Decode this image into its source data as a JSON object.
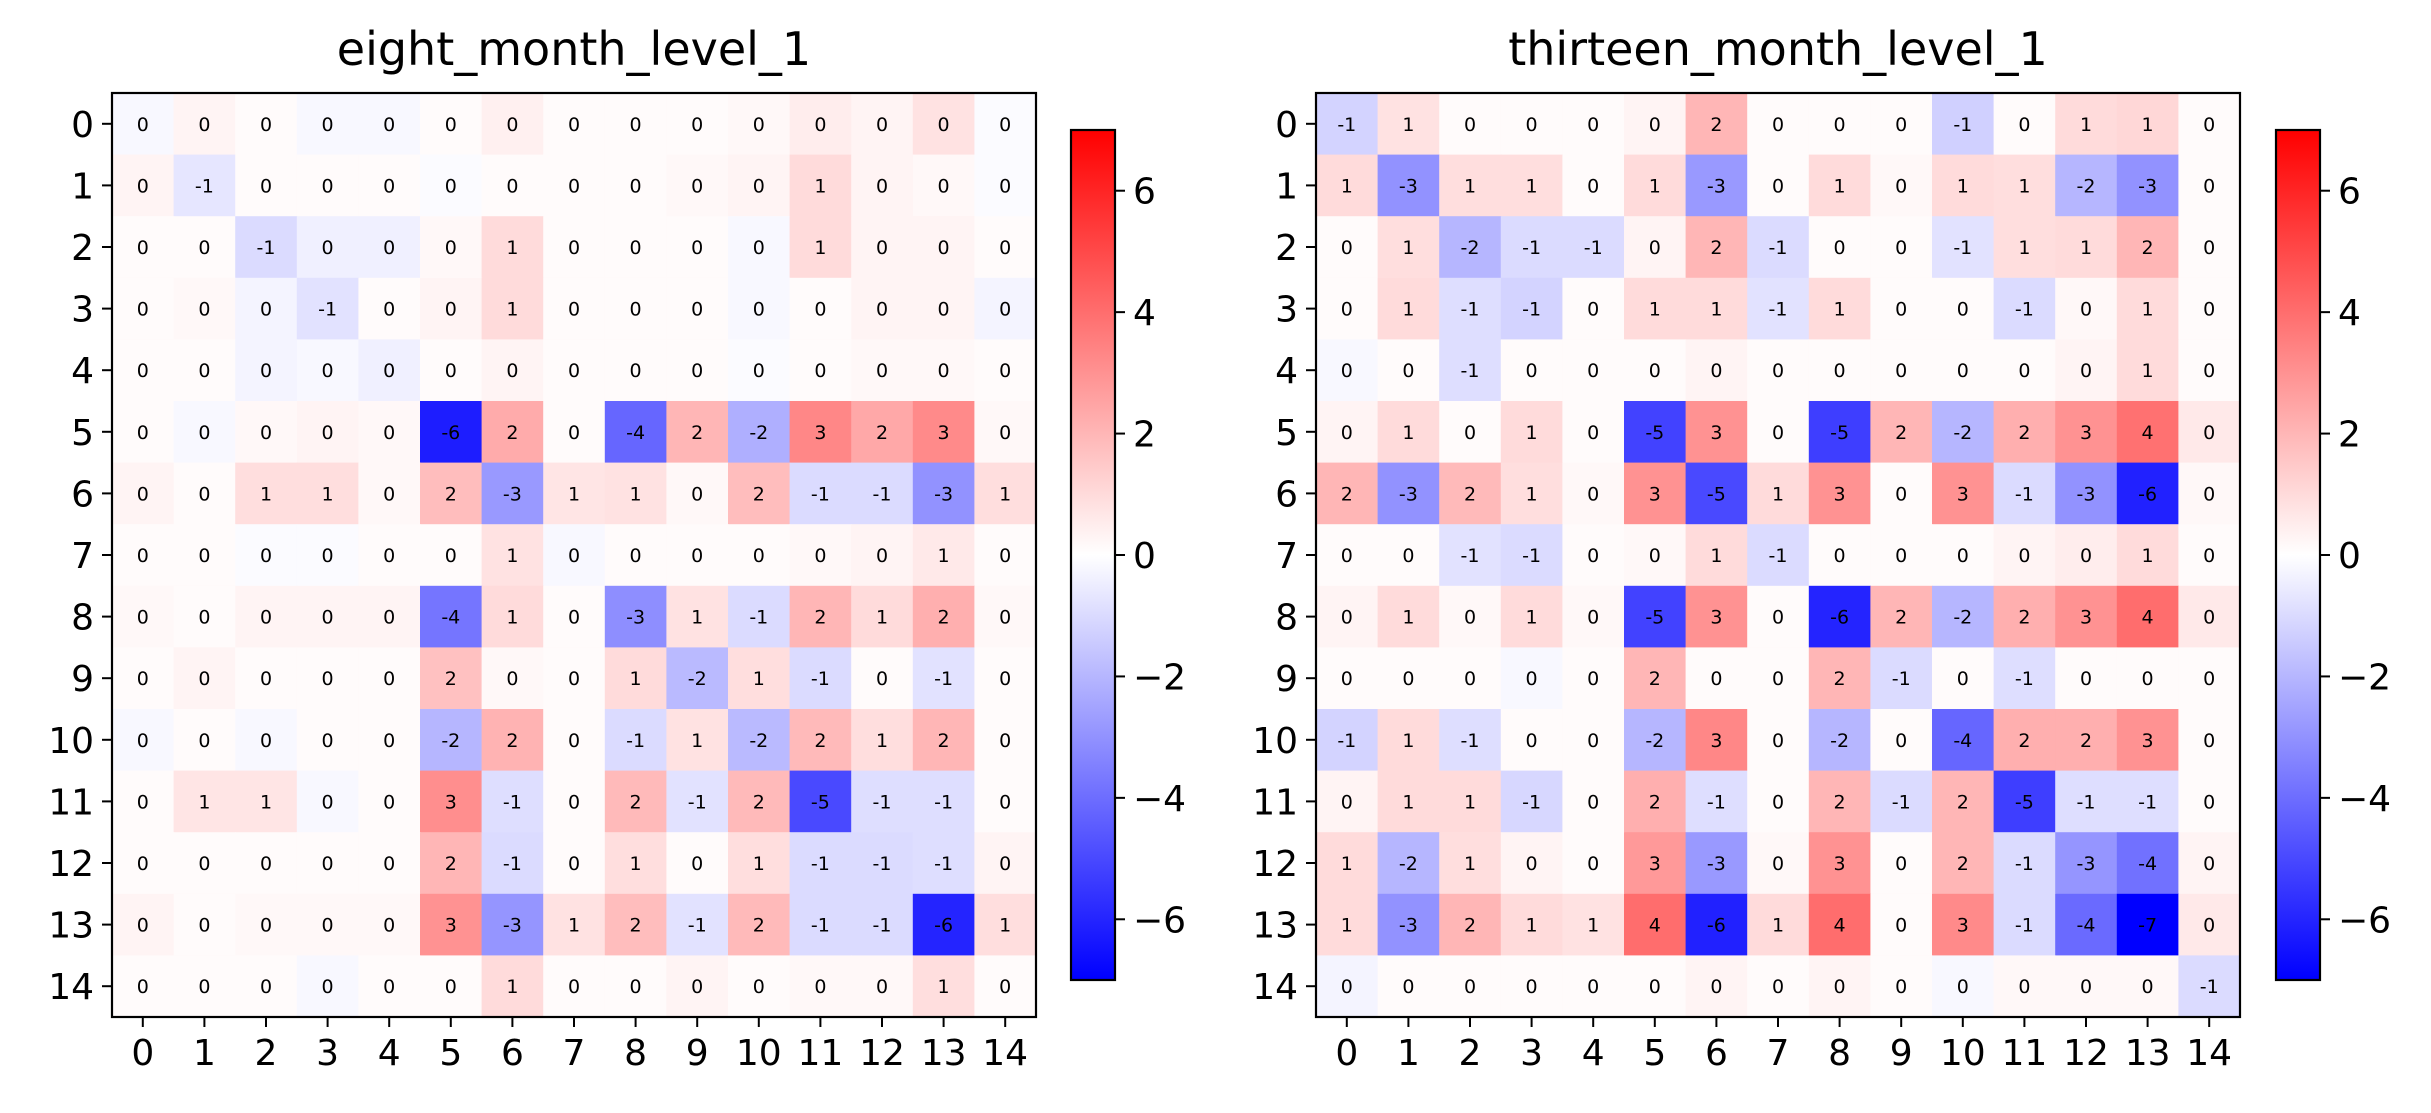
{
  "chart_data": [
    {
      "type": "heatmap",
      "title": "eight_month_level_1",
      "x_ticks": [
        "0",
        "1",
        "2",
        "3",
        "4",
        "5",
        "6",
        "7",
        "8",
        "9",
        "10",
        "11",
        "12",
        "13",
        "14"
      ],
      "y_ticks": [
        "0",
        "1",
        "2",
        "3",
        "4",
        "5",
        "6",
        "7",
        "8",
        "9",
        "10",
        "11",
        "12",
        "13",
        "14"
      ],
      "colormap": "bwr",
      "vmin": -7,
      "vmax": 7,
      "colorbar_ticks": [
        "6",
        "4",
        "2",
        "0",
        "−2",
        "−4",
        "−6"
      ],
      "colorbar_tick_values": [
        6,
        4,
        2,
        0,
        -2,
        -4,
        -6
      ],
      "values": [
        [
          0,
          0,
          0,
          0,
          0,
          0,
          0,
          0,
          0,
          0,
          0,
          0,
          0,
          0,
          0
        ],
        [
          0,
          -1,
          0,
          0,
          0,
          0,
          0,
          0,
          0,
          0,
          0,
          1,
          0,
          0,
          0
        ],
        [
          0,
          0,
          -1,
          0,
          0,
          0,
          1,
          0,
          0,
          0,
          0,
          1,
          0,
          0,
          0
        ],
        [
          0,
          0,
          0,
          -1,
          0,
          0,
          1,
          0,
          0,
          0,
          0,
          0,
          0,
          0,
          0
        ],
        [
          0,
          0,
          0,
          0,
          0,
          0,
          0,
          0,
          0,
          0,
          0,
          0,
          0,
          0,
          0
        ],
        [
          0,
          0,
          0,
          0,
          0,
          -6,
          2,
          0,
          -4,
          2,
          -2,
          3,
          2,
          3,
          0
        ],
        [
          0,
          0,
          1,
          1,
          0,
          2,
          -3,
          1,
          1,
          0,
          2,
          -1,
          -1,
          -3,
          1
        ],
        [
          0,
          0,
          0,
          0,
          0,
          0,
          1,
          0,
          0,
          0,
          0,
          0,
          0,
          1,
          0
        ],
        [
          0,
          0,
          0,
          0,
          0,
          -4,
          1,
          0,
          -3,
          1,
          -1,
          2,
          1,
          2,
          0
        ],
        [
          0,
          0,
          0,
          0,
          0,
          2,
          0,
          0,
          1,
          -2,
          1,
          -1,
          0,
          -1,
          0
        ],
        [
          0,
          0,
          0,
          0,
          0,
          -2,
          2,
          0,
          -1,
          1,
          -2,
          2,
          1,
          2,
          0
        ],
        [
          0,
          1,
          1,
          0,
          0,
          3,
          -1,
          0,
          2,
          -1,
          2,
          -5,
          -1,
          -1,
          0
        ],
        [
          0,
          0,
          0,
          0,
          0,
          2,
          -1,
          0,
          1,
          0,
          1,
          -1,
          -1,
          -1,
          0
        ],
        [
          0,
          0,
          0,
          0,
          0,
          3,
          -3,
          1,
          2,
          -1,
          2,
          -1,
          -1,
          -6,
          1
        ],
        [
          0,
          0,
          0,
          0,
          0,
          0,
          1,
          0,
          0,
          0,
          0,
          0,
          0,
          1,
          0
        ]
      ],
      "colors": [
        [
          -0.2,
          0.3,
          0.1,
          -0.2,
          -0.2,
          0.1,
          0.4,
          0.1,
          0.1,
          0.1,
          0.2,
          0.5,
          0.3,
          0.8,
          -0.1
        ],
        [
          0.3,
          -0.7,
          0.1,
          0.1,
          0.1,
          -0.1,
          0.1,
          0.1,
          0.1,
          0.2,
          0.3,
          1.0,
          0.3,
          0.2,
          -0.1
        ],
        [
          0.1,
          0.1,
          -1.0,
          -0.4,
          -0.4,
          0.2,
          1.0,
          0.1,
          0.1,
          0.1,
          -0.2,
          1.0,
          0.3,
          0.3,
          0.1
        ],
        [
          0.1,
          0.2,
          -0.3,
          -0.8,
          0.1,
          0.3,
          1.0,
          0.1,
          0.1,
          0.1,
          -0.2,
          0.1,
          0.3,
          0.3,
          -0.3
        ],
        [
          0.1,
          0.1,
          -0.3,
          -0.2,
          -0.4,
          0.1,
          0.3,
          0.1,
          0.1,
          0.1,
          -0.1,
          0.1,
          0.2,
          0.2,
          0.1
        ],
        [
          0.1,
          -0.2,
          0.2,
          0.3,
          0.2,
          -6.2,
          2.3,
          0.1,
          -4.2,
          2.0,
          -2.2,
          3.3,
          2.4,
          3.2,
          0.2
        ],
        [
          0.3,
          0.1,
          0.9,
          0.9,
          0.2,
          1.8,
          -2.8,
          0.7,
          0.8,
          0.2,
          1.8,
          -1.0,
          -1.0,
          -3.0,
          0.9
        ],
        [
          0.1,
          0.1,
          -0.1,
          -0.1,
          0.1,
          0.1,
          0.8,
          -0.2,
          0.1,
          0.1,
          0.1,
          0.2,
          0.3,
          0.6,
          0.1
        ],
        [
          0.2,
          0.1,
          0.3,
          0.3,
          0.3,
          -3.8,
          1.0,
          0.1,
          -3.1,
          0.8,
          -1.0,
          2.0,
          1.0,
          2.2,
          0.2
        ],
        [
          0.1,
          0.3,
          0.1,
          0.1,
          0.1,
          1.7,
          0.2,
          0.1,
          1.0,
          -1.9,
          0.9,
          -1.0,
          0.1,
          -0.8,
          0.1
        ],
        [
          -0.2,
          0.1,
          -0.2,
          0.1,
          0.1,
          -2.0,
          2.1,
          0.1,
          -1.0,
          0.8,
          -1.9,
          1.9,
          0.9,
          2.0,
          0.1
        ],
        [
          0.1,
          0.7,
          0.7,
          -0.2,
          0.1,
          3.1,
          -0.9,
          0.1,
          1.9,
          -0.8,
          1.9,
          -5.0,
          -0.9,
          -0.9,
          0.1
        ],
        [
          0.1,
          0.1,
          0.1,
          0.1,
          0.1,
          2.0,
          -1.0,
          0.1,
          0.9,
          0.1,
          0.9,
          -1.0,
          -1.0,
          -0.9,
          0.3
        ],
        [
          0.3,
          0.1,
          0.2,
          0.2,
          0.2,
          3.0,
          -2.9,
          0.8,
          1.8,
          -0.8,
          1.9,
          -1.0,
          -1.0,
          -6.0,
          0.9
        ],
        [
          0.1,
          0.1,
          0.1,
          -0.2,
          0.1,
          0.1,
          1.0,
          0.1,
          0.1,
          0.3,
          0.1,
          0.2,
          0.2,
          0.9,
          0.1
        ]
      ]
    },
    {
      "type": "heatmap",
      "title": "thirteen_month_level_1",
      "x_ticks": [
        "0",
        "1",
        "2",
        "3",
        "4",
        "5",
        "6",
        "7",
        "8",
        "9",
        "10",
        "11",
        "12",
        "13",
        "14"
      ],
      "y_ticks": [
        "0",
        "1",
        "2",
        "3",
        "4",
        "5",
        "6",
        "7",
        "8",
        "9",
        "10",
        "11",
        "12",
        "13",
        "14"
      ],
      "colormap": "bwr",
      "vmin": -7,
      "vmax": 7,
      "colorbar_ticks": [
        "6",
        "4",
        "2",
        "0",
        "−2",
        "−4",
        "−6"
      ],
      "colorbar_tick_values": [
        6,
        4,
        2,
        0,
        -2,
        -4,
        -6
      ],
      "values": [
        [
          -1,
          1,
          0,
          0,
          0,
          0,
          2,
          0,
          0,
          0,
          -1,
          0,
          1,
          1,
          0
        ],
        [
          1,
          -3,
          1,
          1,
          0,
          1,
          -3,
          0,
          1,
          0,
          1,
          1,
          -2,
          -3,
          0
        ],
        [
          0,
          1,
          -2,
          -1,
          -1,
          0,
          2,
          -1,
          0,
          0,
          -1,
          1,
          1,
          2,
          0
        ],
        [
          0,
          1,
          -1,
          -1,
          0,
          1,
          1,
          -1,
          1,
          0,
          0,
          -1,
          0,
          1,
          0
        ],
        [
          0,
          0,
          -1,
          0,
          0,
          0,
          0,
          0,
          0,
          0,
          0,
          0,
          0,
          1,
          0
        ],
        [
          0,
          1,
          0,
          1,
          0,
          -5,
          3,
          0,
          -5,
          2,
          -2,
          2,
          3,
          4,
          0
        ],
        [
          2,
          -3,
          2,
          1,
          0,
          3,
          -5,
          1,
          3,
          0,
          3,
          -1,
          -3,
          -6,
          0
        ],
        [
          0,
          0,
          -1,
          -1,
          0,
          0,
          1,
          -1,
          0,
          0,
          0,
          0,
          0,
          1,
          0
        ],
        [
          0,
          1,
          0,
          1,
          0,
          -5,
          3,
          0,
          -6,
          2,
          -2,
          2,
          3,
          4,
          0
        ],
        [
          0,
          0,
          0,
          0,
          0,
          2,
          0,
          0,
          2,
          -1,
          0,
          -1,
          0,
          0,
          0
        ],
        [
          -1,
          1,
          -1,
          0,
          0,
          -2,
          3,
          0,
          -2,
          0,
          -4,
          2,
          2,
          3,
          0
        ],
        [
          0,
          1,
          1,
          -1,
          0,
          2,
          -1,
          0,
          2,
          -1,
          2,
          -5,
          -1,
          -1,
          0
        ],
        [
          1,
          -2,
          1,
          0,
          0,
          3,
          -3,
          0,
          3,
          0,
          2,
          -1,
          -3,
          -4,
          0
        ],
        [
          1,
          -3,
          2,
          1,
          1,
          4,
          -6,
          1,
          4,
          0,
          3,
          -1,
          -4,
          -7,
          0
        ],
        [
          0,
          0,
          0,
          0,
          0,
          0,
          0,
          0,
          0,
          0,
          0,
          0,
          0,
          0,
          -1
        ]
      ],
      "colors": [
        [
          -1.2,
          0.8,
          0.1,
          0.1,
          0.1,
          0.3,
          2.0,
          0.1,
          0.1,
          0.1,
          -1.3,
          0.1,
          1.0,
          1.1,
          0.1
        ],
        [
          1.0,
          -3.0,
          0.9,
          0.9,
          0.1,
          1.0,
          -2.8,
          0.1,
          1.0,
          0.2,
          1.0,
          0.9,
          -2.0,
          -3.0,
          0.1
        ],
        [
          0.1,
          0.9,
          -2.0,
          -1.0,
          -1.0,
          0.3,
          2.0,
          -1.0,
          0.1,
          0.1,
          -0.8,
          0.9,
          1.0,
          2.0,
          0.1
        ],
        [
          0.1,
          1.0,
          -0.9,
          -1.2,
          0.1,
          1.0,
          1.0,
          -0.8,
          1.0,
          0.1,
          0.1,
          -1.0,
          0.2,
          1.0,
          0.1
        ],
        [
          -0.2,
          0.1,
          -0.9,
          0.1,
          0.1,
          0.1,
          0.3,
          0.1,
          0.1,
          0.1,
          0.1,
          0.1,
          0.3,
          1.0,
          0.1
        ],
        [
          0.3,
          1.0,
          0.1,
          1.0,
          0.1,
          -5.2,
          3.0,
          0.1,
          -5.3,
          2.0,
          -2.0,
          2.2,
          3.0,
          3.9,
          0.6
        ],
        [
          2.0,
          -3.0,
          1.9,
          0.9,
          0.2,
          3.0,
          -5.0,
          1.0,
          3.0,
          0.1,
          3.0,
          -1.0,
          -3.0,
          -6.1,
          0.2
        ],
        [
          0.1,
          0.1,
          -0.8,
          -1.0,
          0.1,
          0.2,
          1.0,
          -1.0,
          0.1,
          0.1,
          0.1,
          0.3,
          0.5,
          1.0,
          0.1
        ],
        [
          0.3,
          1.0,
          0.2,
          1.0,
          0.2,
          -5.2,
          3.0,
          0.1,
          -6.0,
          2.0,
          -2.0,
          2.2,
          3.0,
          4.0,
          0.6
        ],
        [
          0.1,
          0.1,
          0.1,
          -0.2,
          0.1,
          2.0,
          0.1,
          0.1,
          2.0,
          -1.0,
          0.1,
          -0.9,
          0.1,
          0.1,
          0.1
        ],
        [
          -1.2,
          1.0,
          -0.9,
          0.1,
          0.1,
          -2.0,
          3.3,
          0.1,
          -2.0,
          0.1,
          -4.2,
          2.2,
          2.2,
          3.0,
          0.1
        ],
        [
          0.3,
          1.0,
          1.0,
          -1.1,
          0.1,
          2.2,
          -0.9,
          0.1,
          2.0,
          -1.0,
          2.0,
          -5.3,
          -0.9,
          -0.9,
          0.1
        ],
        [
          1.0,
          -2.0,
          0.9,
          0.3,
          0.1,
          2.8,
          -2.8,
          0.2,
          3.0,
          0.1,
          2.0,
          -1.0,
          -2.9,
          -3.9,
          0.3
        ],
        [
          1.0,
          -3.0,
          2.0,
          1.0,
          0.8,
          4.0,
          -6.1,
          1.0,
          4.0,
          0.1,
          3.2,
          -1.0,
          -4.1,
          -7.0,
          0.6
        ],
        [
          -0.3,
          0.1,
          0.1,
          0.1,
          0.1,
          0.1,
          0.3,
          0.1,
          0.3,
          0.1,
          -0.2,
          0.2,
          0.2,
          0.2,
          -1.0
        ]
      ]
    }
  ]
}
